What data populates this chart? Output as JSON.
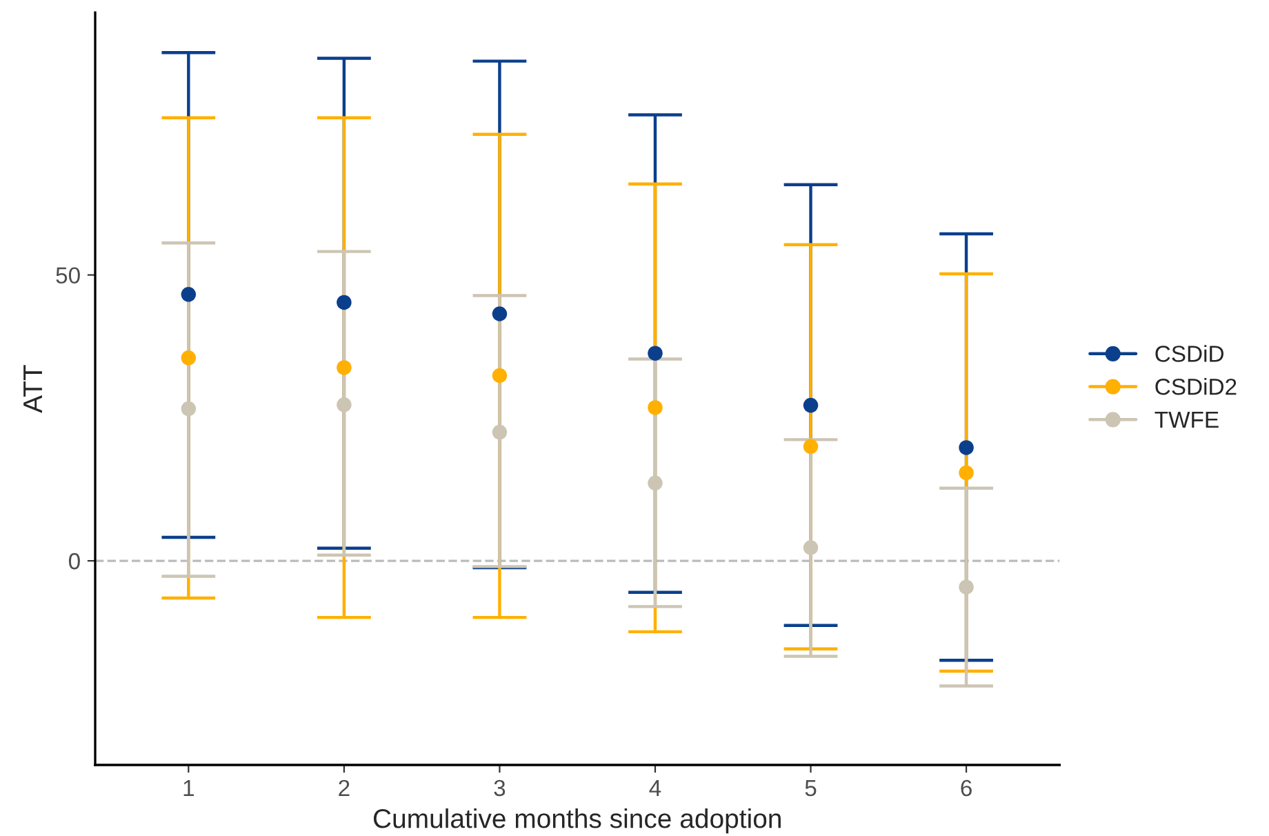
{
  "chart_data": {
    "type": "scatter",
    "xlabel": "Cumulative months since adoption",
    "ylabel": "ATT",
    "categories": [
      "1",
      "2",
      "3",
      "4",
      "5",
      "6"
    ],
    "series": [
      {
        "name": "CSDiD",
        "color": "#0b3f8c",
        "values": [
          46.6,
          45.2,
          43.2,
          36.3,
          27.2,
          19.8
        ],
        "errors": [
          [
            4.1,
            88.9
          ],
          [
            2.2,
            87.9
          ],
          [
            -1.2,
            87.4
          ],
          [
            -5.5,
            78.0
          ],
          [
            -11.3,
            65.8
          ],
          [
            -17.4,
            57.2
          ]
        ]
      },
      {
        "name": "CSDiD2",
        "color": "#ffb000",
        "values": [
          35.5,
          33.8,
          32.4,
          26.8,
          20.0,
          15.4
        ],
        "errors": [
          [
            -6.5,
            77.5
          ],
          [
            -9.9,
            77.5
          ],
          [
            -9.9,
            74.6
          ],
          [
            -12.4,
            65.9
          ],
          [
            -15.4,
            55.3
          ],
          [
            -19.3,
            50.2
          ]
        ]
      },
      {
        "name": "TWFE",
        "color": "#cdc5b4",
        "values": [
          26.6,
          27.3,
          22.5,
          13.6,
          2.3,
          -4.6
        ],
        "errors": [
          [
            -2.7,
            55.6
          ],
          [
            1.0,
            54.1
          ],
          [
            -1.0,
            46.4
          ],
          [
            -8.0,
            35.3
          ],
          [
            -16.7,
            21.2
          ],
          [
            -21.9,
            12.7
          ]
        ]
      }
    ],
    "ylim": [
      -35.7,
      95.9
    ],
    "yticks": [
      0,
      50
    ],
    "ref_lines": [
      {
        "axis": "y",
        "value": 0,
        "color": "#bbbbbb",
        "line_style": "dashed"
      }
    ],
    "marker": "circle",
    "grid": false,
    "legend": "right"
  }
}
